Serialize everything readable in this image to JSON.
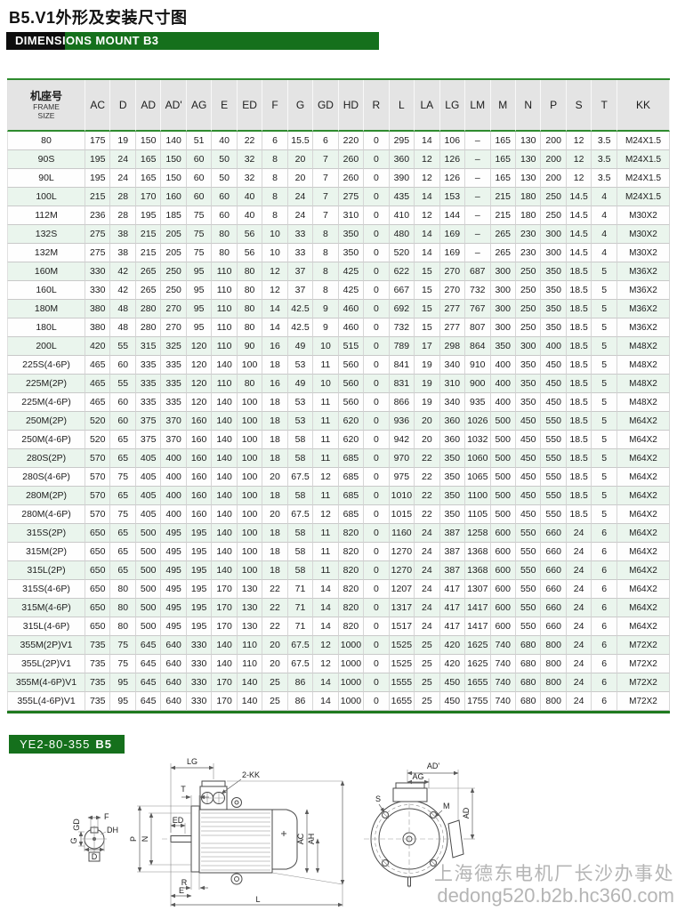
{
  "page": {
    "title": "B5.V1外形及安装尺寸图",
    "banner": "DIMENSIONS MOUNT B3",
    "footer_label": "YE2-80-355",
    "footer_label_bold": "B5"
  },
  "colors": {
    "green_dark": "#15701c",
    "green_border": "#2e8b2e",
    "row_alt": "#eaf5ed",
    "header_bg": "#e4e4e4",
    "watermark": "#b5b5b5"
  },
  "table": {
    "frame_header": {
      "zh": "机座号",
      "en1": "FRAME",
      "en2": "SIZE"
    },
    "columns": [
      "AC",
      "D",
      "AD",
      "AD'",
      "AG",
      "E",
      "ED",
      "F",
      "G",
      "GD",
      "HD",
      "R",
      "L",
      "LA",
      "LG",
      "LM",
      "M",
      "N",
      "P",
      "S",
      "T",
      "KK"
    ],
    "rows": [
      [
        "80",
        "175",
        "19",
        "150",
        "140",
        "51",
        "40",
        "22",
        "6",
        "15.5",
        "6",
        "220",
        "0",
        "295",
        "14",
        "106",
        "–",
        "165",
        "130",
        "200",
        "12",
        "3.5",
        "M24X1.5"
      ],
      [
        "90S",
        "195",
        "24",
        "165",
        "150",
        "60",
        "50",
        "32",
        "8",
        "20",
        "7",
        "260",
        "0",
        "360",
        "12",
        "126",
        "–",
        "165",
        "130",
        "200",
        "12",
        "3.5",
        "M24X1.5"
      ],
      [
        "90L",
        "195",
        "24",
        "165",
        "150",
        "60",
        "50",
        "32",
        "8",
        "20",
        "7",
        "260",
        "0",
        "390",
        "12",
        "126",
        "–",
        "165",
        "130",
        "200",
        "12",
        "3.5",
        "M24X1.5"
      ],
      [
        "100L",
        "215",
        "28",
        "170",
        "160",
        "60",
        "60",
        "40",
        "8",
        "24",
        "7",
        "275",
        "0",
        "435",
        "14",
        "153",
        "–",
        "215",
        "180",
        "250",
        "14.5",
        "4",
        "M24X1.5"
      ],
      [
        "112M",
        "236",
        "28",
        "195",
        "185",
        "75",
        "60",
        "40",
        "8",
        "24",
        "7",
        "310",
        "0",
        "410",
        "12",
        "144",
        "–",
        "215",
        "180",
        "250",
        "14.5",
        "4",
        "M30X2"
      ],
      [
        "132S",
        "275",
        "38",
        "215",
        "205",
        "75",
        "80",
        "56",
        "10",
        "33",
        "8",
        "350",
        "0",
        "480",
        "14",
        "169",
        "–",
        "265",
        "230",
        "300",
        "14.5",
        "4",
        "M30X2"
      ],
      [
        "132M",
        "275",
        "38",
        "215",
        "205",
        "75",
        "80",
        "56",
        "10",
        "33",
        "8",
        "350",
        "0",
        "520",
        "14",
        "169",
        "–",
        "265",
        "230",
        "300",
        "14.5",
        "4",
        "M30X2"
      ],
      [
        "160M",
        "330",
        "42",
        "265",
        "250",
        "95",
        "110",
        "80",
        "12",
        "37",
        "8",
        "425",
        "0",
        "622",
        "15",
        "270",
        "687",
        "300",
        "250",
        "350",
        "18.5",
        "5",
        "M36X2"
      ],
      [
        "160L",
        "330",
        "42",
        "265",
        "250",
        "95",
        "110",
        "80",
        "12",
        "37",
        "8",
        "425",
        "0",
        "667",
        "15",
        "270",
        "732",
        "300",
        "250",
        "350",
        "18.5",
        "5",
        "M36X2"
      ],
      [
        "180M",
        "380",
        "48",
        "280",
        "270",
        "95",
        "110",
        "80",
        "14",
        "42.5",
        "9",
        "460",
        "0",
        "692",
        "15",
        "277",
        "767",
        "300",
        "250",
        "350",
        "18.5",
        "5",
        "M36X2"
      ],
      [
        "180L",
        "380",
        "48",
        "280",
        "270",
        "95",
        "110",
        "80",
        "14",
        "42.5",
        "9",
        "460",
        "0",
        "732",
        "15",
        "277",
        "807",
        "300",
        "250",
        "350",
        "18.5",
        "5",
        "M36X2"
      ],
      [
        "200L",
        "420",
        "55",
        "315",
        "325",
        "120",
        "110",
        "90",
        "16",
        "49",
        "10",
        "515",
        "0",
        "789",
        "17",
        "298",
        "864",
        "350",
        "300",
        "400",
        "18.5",
        "5",
        "M48X2"
      ],
      [
        "225S(4-6P)",
        "465",
        "60",
        "335",
        "335",
        "120",
        "140",
        "100",
        "18",
        "53",
        "11",
        "560",
        "0",
        "841",
        "19",
        "340",
        "910",
        "400",
        "350",
        "450",
        "18.5",
        "5",
        "M48X2"
      ],
      [
        "225M(2P)",
        "465",
        "55",
        "335",
        "335",
        "120",
        "110",
        "80",
        "16",
        "49",
        "10",
        "560",
        "0",
        "831",
        "19",
        "310",
        "900",
        "400",
        "350",
        "450",
        "18.5",
        "5",
        "M48X2"
      ],
      [
        "225M(4-6P)",
        "465",
        "60",
        "335",
        "335",
        "120",
        "140",
        "100",
        "18",
        "53",
        "11",
        "560",
        "0",
        "866",
        "19",
        "340",
        "935",
        "400",
        "350",
        "450",
        "18.5",
        "5",
        "M48X2"
      ],
      [
        "250M(2P)",
        "520",
        "60",
        "375",
        "370",
        "160",
        "140",
        "100",
        "18",
        "53",
        "11",
        "620",
        "0",
        "936",
        "20",
        "360",
        "1026",
        "500",
        "450",
        "550",
        "18.5",
        "5",
        "M64X2"
      ],
      [
        "250M(4-6P)",
        "520",
        "65",
        "375",
        "370",
        "160",
        "140",
        "100",
        "18",
        "58",
        "11",
        "620",
        "0",
        "942",
        "20",
        "360",
        "1032",
        "500",
        "450",
        "550",
        "18.5",
        "5",
        "M64X2"
      ],
      [
        "280S(2P)",
        "570",
        "65",
        "405",
        "400",
        "160",
        "140",
        "100",
        "18",
        "58",
        "11",
        "685",
        "0",
        "970",
        "22",
        "350",
        "1060",
        "500",
        "450",
        "550",
        "18.5",
        "5",
        "M64X2"
      ],
      [
        "280S(4-6P)",
        "570",
        "75",
        "405",
        "400",
        "160",
        "140",
        "100",
        "20",
        "67.5",
        "12",
        "685",
        "0",
        "975",
        "22",
        "350",
        "1065",
        "500",
        "450",
        "550",
        "18.5",
        "5",
        "M64X2"
      ],
      [
        "280M(2P)",
        "570",
        "65",
        "405",
        "400",
        "160",
        "140",
        "100",
        "18",
        "58",
        "11",
        "685",
        "0",
        "1010",
        "22",
        "350",
        "1100",
        "500",
        "450",
        "550",
        "18.5",
        "5",
        "M64X2"
      ],
      [
        "280M(4-6P)",
        "570",
        "75",
        "405",
        "400",
        "160",
        "140",
        "100",
        "20",
        "67.5",
        "12",
        "685",
        "0",
        "1015",
        "22",
        "350",
        "1105",
        "500",
        "450",
        "550",
        "18.5",
        "5",
        "M64X2"
      ],
      [
        "315S(2P)",
        "650",
        "65",
        "500",
        "495",
        "195",
        "140",
        "100",
        "18",
        "58",
        "11",
        "820",
        "0",
        "1160",
        "24",
        "387",
        "1258",
        "600",
        "550",
        "660",
        "24",
        "6",
        "M64X2"
      ],
      [
        "315M(2P)",
        "650",
        "65",
        "500",
        "495",
        "195",
        "140",
        "100",
        "18",
        "58",
        "11",
        "820",
        "0",
        "1270",
        "24",
        "387",
        "1368",
        "600",
        "550",
        "660",
        "24",
        "6",
        "M64X2"
      ],
      [
        "315L(2P)",
        "650",
        "65",
        "500",
        "495",
        "195",
        "140",
        "100",
        "18",
        "58",
        "11",
        "820",
        "0",
        "1270",
        "24",
        "387",
        "1368",
        "600",
        "550",
        "660",
        "24",
        "6",
        "M64X2"
      ],
      [
        "315S(4-6P)",
        "650",
        "80",
        "500",
        "495",
        "195",
        "170",
        "130",
        "22",
        "71",
        "14",
        "820",
        "0",
        "1207",
        "24",
        "417",
        "1307",
        "600",
        "550",
        "660",
        "24",
        "6",
        "M64X2"
      ],
      [
        "315M(4-6P)",
        "650",
        "80",
        "500",
        "495",
        "195",
        "170",
        "130",
        "22",
        "71",
        "14",
        "820",
        "0",
        "1317",
        "24",
        "417",
        "1417",
        "600",
        "550",
        "660",
        "24",
        "6",
        "M64X2"
      ],
      [
        "315L(4-6P)",
        "650",
        "80",
        "500",
        "495",
        "195",
        "170",
        "130",
        "22",
        "71",
        "14",
        "820",
        "0",
        "1517",
        "24",
        "417",
        "1417",
        "600",
        "550",
        "660",
        "24",
        "6",
        "M64X2"
      ],
      [
        "355M(2P)V1",
        "735",
        "75",
        "645",
        "640",
        "330",
        "140",
        "110",
        "20",
        "67.5",
        "12",
        "1000",
        "0",
        "1525",
        "25",
        "420",
        "1625",
        "740",
        "680",
        "800",
        "24",
        "6",
        "M72X2"
      ],
      [
        "355L(2P)V1",
        "735",
        "75",
        "645",
        "640",
        "330",
        "140",
        "110",
        "20",
        "67.5",
        "12",
        "1000",
        "0",
        "1525",
        "25",
        "420",
        "1625",
        "740",
        "680",
        "800",
        "24",
        "6",
        "M72X2"
      ],
      [
        "355M(4-6P)V1",
        "735",
        "95",
        "645",
        "640",
        "330",
        "170",
        "140",
        "25",
        "86",
        "14",
        "1000",
        "0",
        "1555",
        "25",
        "450",
        "1655",
        "740",
        "680",
        "800",
        "24",
        "6",
        "M72X2"
      ],
      [
        "355L(4-6P)V1",
        "735",
        "95",
        "645",
        "640",
        "330",
        "170",
        "140",
        "25",
        "86",
        "14",
        "1000",
        "0",
        "1655",
        "25",
        "450",
        "1755",
        "740",
        "680",
        "800",
        "24",
        "6",
        "M72X2"
      ]
    ]
  },
  "drawing": {
    "labels": {
      "gd": "GD",
      "f": "F",
      "dh": "DH",
      "g": "G",
      "d": "D",
      "lg": "LG",
      "kk": "2-KK",
      "t": "T",
      "ed": "ED",
      "p": "P",
      "n": "N",
      "ac": "AC",
      "ah": "AH",
      "r": "R",
      "e": "E",
      "l": "L",
      "ad_prime": "AD'",
      "ag": "AG",
      "s": "S",
      "m": "M",
      "ad": "AD"
    }
  },
  "watermark": {
    "line1": "上海德东电机厂长沙办事处",
    "line2": "dedong520.b2b.hc360.com"
  }
}
